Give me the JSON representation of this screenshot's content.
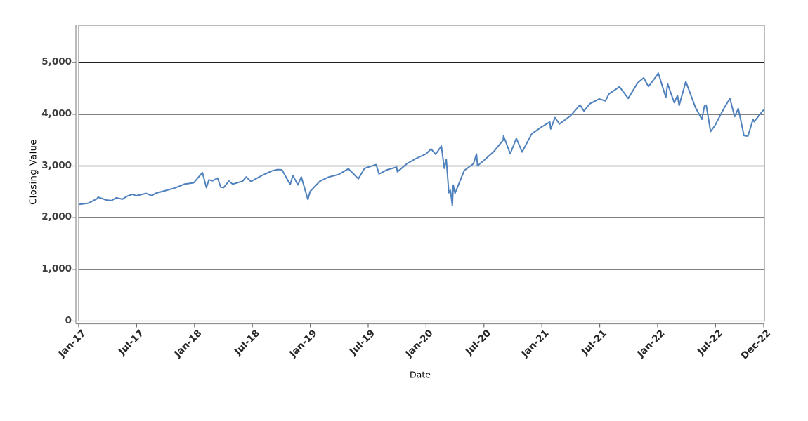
{
  "chart_data": {
    "type": "line",
    "title": "",
    "xlabel": "Date",
    "ylabel": "Closing Value",
    "legend": "none",
    "grid": "horizontal black gridlines every 1,000",
    "ylim": [
      0,
      5722
    ],
    "xlim_months": [
      0,
      71.07
    ],
    "y_axis": {
      "tick_labels": [
        "0",
        "1,000",
        "2,000",
        "3,000",
        "4,000",
        "5,000"
      ],
      "tick_values": [
        0,
        1000,
        2000,
        3000,
        4000,
        5000
      ]
    },
    "x_axis": {
      "tick_labels": [
        "Jan-17",
        "Jul-17",
        "Jan-18",
        "Jul-18",
        "Jan-19",
        "Jul-19",
        "Jan-20",
        "Jul-20",
        "Jan-21",
        "Jul-21",
        "Jan-22",
        "Jul-22",
        "Dec-22"
      ],
      "tick_month_index": [
        0,
        6,
        12,
        18,
        24,
        30,
        36,
        42,
        48,
        54,
        60,
        66,
        71
      ],
      "rotation_deg": -45
    },
    "colors": {
      "line": "#4f81bd",
      "gridline": "#000000",
      "frame": "#8f8f8f",
      "tick_mark": "#6e6e6e",
      "tick_text": "#3d3d3d",
      "axis_title_text": "#000000",
      "background": "#ffffff"
    },
    "series": [
      {
        "name": "Closing Value",
        "color": "#4f81bd",
        "points": [
          [
            "2017-01-03",
            2257
          ],
          [
            "2017-01-31",
            2279
          ],
          [
            "2017-02-28",
            2364
          ],
          [
            "2017-03-01",
            2396
          ],
          [
            "2017-03-27",
            2342
          ],
          [
            "2017-04-13",
            2329
          ],
          [
            "2017-04-28",
            2384
          ],
          [
            "2017-05-17",
            2357
          ],
          [
            "2017-05-31",
            2412
          ],
          [
            "2017-06-19",
            2453
          ],
          [
            "2017-06-30",
            2423
          ],
          [
            "2017-07-31",
            2470
          ],
          [
            "2017-08-18",
            2426
          ],
          [
            "2017-08-31",
            2472
          ],
          [
            "2017-09-29",
            2519
          ],
          [
            "2017-10-31",
            2575
          ],
          [
            "2017-11-30",
            2648
          ],
          [
            "2017-12-29",
            2674
          ],
          [
            "2018-01-26",
            2873
          ],
          [
            "2018-02-08",
            2581
          ],
          [
            "2018-02-16",
            2732
          ],
          [
            "2018-02-28",
            2714
          ],
          [
            "2018-03-13",
            2765
          ],
          [
            "2018-03-23",
            2588
          ],
          [
            "2018-04-02",
            2582
          ],
          [
            "2018-04-18",
            2708
          ],
          [
            "2018-04-30",
            2648
          ],
          [
            "2018-05-31",
            2705
          ],
          [
            "2018-06-12",
            2787
          ],
          [
            "2018-06-27",
            2700
          ],
          [
            "2018-07-31",
            2816
          ],
          [
            "2018-08-31",
            2902
          ],
          [
            "2018-09-20",
            2931
          ],
          [
            "2018-10-03",
            2926
          ],
          [
            "2018-10-29",
            2641
          ],
          [
            "2018-11-07",
            2814
          ],
          [
            "2018-11-23",
            2633
          ],
          [
            "2018-12-03",
            2790
          ],
          [
            "2018-12-24",
            2351
          ],
          [
            "2018-12-31",
            2507
          ],
          [
            "2019-01-31",
            2704
          ],
          [
            "2019-02-28",
            2784
          ],
          [
            "2019-03-29",
            2834
          ],
          [
            "2019-04-30",
            2946
          ],
          [
            "2019-05-31",
            2752
          ],
          [
            "2019-06-20",
            2954
          ],
          [
            "2019-07-26",
            3026
          ],
          [
            "2019-08-05",
            2845
          ],
          [
            "2019-08-30",
            2926
          ],
          [
            "2019-09-30",
            2977
          ],
          [
            "2019-10-02",
            2888
          ],
          [
            "2019-10-31",
            3038
          ],
          [
            "2019-11-29",
            3141
          ],
          [
            "2019-12-31",
            3231
          ],
          [
            "2020-01-17",
            3330
          ],
          [
            "2020-01-31",
            3226
          ],
          [
            "2020-02-19",
            3386
          ],
          [
            "2020-02-28",
            2954
          ],
          [
            "2020-03-04",
            3130
          ],
          [
            "2020-03-12",
            2481
          ],
          [
            "2020-03-17",
            2529
          ],
          [
            "2020-03-23",
            2237
          ],
          [
            "2020-03-26",
            2630
          ],
          [
            "2020-04-01",
            2471
          ],
          [
            "2020-04-30",
            2912
          ],
          [
            "2020-05-29",
            3044
          ],
          [
            "2020-06-08",
            3232
          ],
          [
            "2020-06-11",
            3002
          ],
          [
            "2020-06-30",
            3100
          ],
          [
            "2020-07-31",
            3271
          ],
          [
            "2020-08-31",
            3500
          ],
          [
            "2020-09-02",
            3581
          ],
          [
            "2020-09-23",
            3237
          ],
          [
            "2020-10-12",
            3534
          ],
          [
            "2020-10-30",
            3270
          ],
          [
            "2020-11-30",
            3622
          ],
          [
            "2020-12-31",
            3756
          ],
          [
            "2021-01-26",
            3850
          ],
          [
            "2021-01-29",
            3714
          ],
          [
            "2021-02-12",
            3935
          ],
          [
            "2021-02-26",
            3811
          ],
          [
            "2021-03-31",
            3973
          ],
          [
            "2021-04-30",
            4181
          ],
          [
            "2021-05-12",
            4063
          ],
          [
            "2021-05-31",
            4204
          ],
          [
            "2021-06-30",
            4298
          ],
          [
            "2021-07-19",
            4258
          ],
          [
            "2021-07-30",
            4395
          ],
          [
            "2021-08-31",
            4523
          ],
          [
            "2021-09-02",
            4537
          ],
          [
            "2021-09-30",
            4308
          ],
          [
            "2021-10-29",
            4605
          ],
          [
            "2021-11-18",
            4705
          ],
          [
            "2021-11-30",
            4567
          ],
          [
            "2021-12-03",
            4538
          ],
          [
            "2021-12-31",
            4766
          ],
          [
            "2022-01-03",
            4797
          ],
          [
            "2022-01-27",
            4326
          ],
          [
            "2022-02-02",
            4589
          ],
          [
            "2022-02-23",
            4226
          ],
          [
            "2022-03-03",
            4363
          ],
          [
            "2022-03-08",
            4171
          ],
          [
            "2022-03-29",
            4632
          ],
          [
            "2022-04-29",
            4132
          ],
          [
            "2022-05-19",
            3901
          ],
          [
            "2022-05-27",
            4158
          ],
          [
            "2022-06-02",
            4177
          ],
          [
            "2022-06-16",
            3667
          ],
          [
            "2022-06-30",
            3785
          ],
          [
            "2022-07-29",
            4130
          ],
          [
            "2022-08-16",
            4305
          ],
          [
            "2022-08-31",
            3955
          ],
          [
            "2022-09-12",
            4110
          ],
          [
            "2022-09-30",
            3586
          ],
          [
            "2022-10-12",
            3577
          ],
          [
            "2022-10-28",
            3901
          ],
          [
            "2022-11-01",
            3856
          ],
          [
            "2022-11-30",
            4080
          ],
          [
            "2022-12-02",
            4072
          ]
        ]
      }
    ]
  }
}
